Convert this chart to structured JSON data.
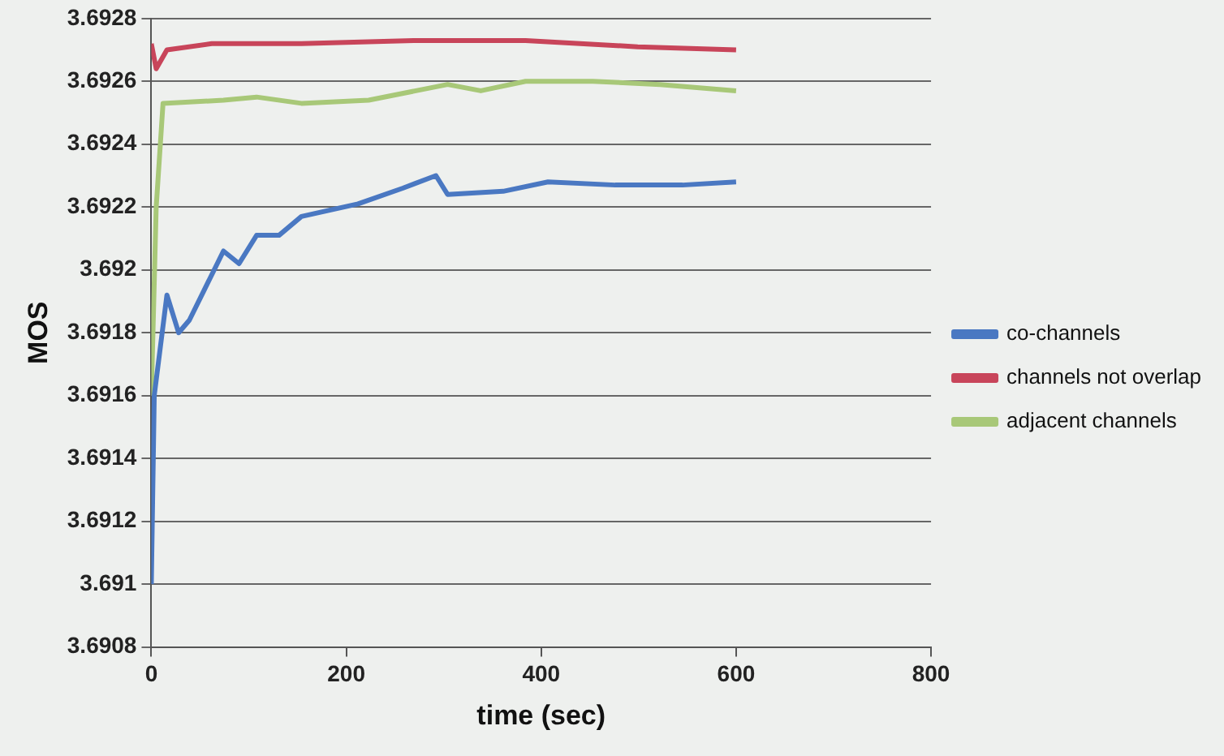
{
  "chart_data": {
    "type": "line",
    "xlabel": "time (sec)",
    "ylabel": "MOS",
    "xlim": [
      0,
      800
    ],
    "xticks": [
      0,
      200,
      400,
      600,
      800
    ],
    "ylim": [
      3.6908,
      3.6928
    ],
    "yticks": [
      3.6908,
      3.691,
      3.6912,
      3.6914,
      3.6916,
      3.6918,
      3.692,
      3.6922,
      3.6924,
      3.6926,
      3.6928
    ],
    "grid": "y",
    "legend": "right",
    "marker": "none",
    "series": [
      {
        "name": "co-channels",
        "color": "#4a78c2",
        "x": [
          0,
          3,
          16,
          28,
          39,
          74,
          90,
          108,
          131,
          154,
          212,
          258,
          292,
          304,
          361,
          407,
          476,
          545,
          600
        ],
        "values": [
          3.691,
          3.6916,
          3.69192,
          3.6918,
          3.69184,
          3.69206,
          3.69202,
          3.69211,
          3.69211,
          3.69217,
          3.69221,
          3.69226,
          3.6923,
          3.69224,
          3.69225,
          3.69228,
          3.69227,
          3.69227,
          3.69228
        ]
      },
      {
        "name": "channels not overlap",
        "color": "#c8455a",
        "x": [
          0,
          5,
          16,
          62,
          154,
          269,
          384,
          499,
          600
        ],
        "values": [
          3.69272,
          3.69264,
          3.6927,
          3.69272,
          3.69272,
          3.69273,
          3.69273,
          3.69271,
          3.6927
        ]
      },
      {
        "name": "adjacent channels",
        "color": "#a8c878",
        "x": [
          0,
          5,
          12,
          74,
          108,
          154,
          223,
          304,
          338,
          384,
          453,
          522,
          600
        ],
        "values": [
          3.6916,
          3.6922,
          3.69253,
          3.69254,
          3.69255,
          3.69253,
          3.69254,
          3.69259,
          3.69257,
          3.6926,
          3.6926,
          3.69259,
          3.69257
        ]
      }
    ]
  }
}
